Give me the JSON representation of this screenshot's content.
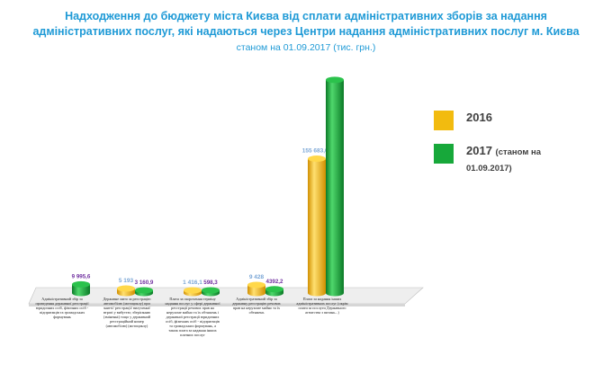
{
  "title": [
    "Надходження до бюджету міста Києва від сплати адміністративних зборів за надання",
    "адміністративних послуг, які надаються через Центри надання адміністративних послуг  м. Києва"
  ],
  "subtitle": "станом на 01.09.2017 (тис. грн.)",
  "colors": {
    "title": "#1f9ad6",
    "series_2016": "#f2bb0f",
    "series_2017": "#17a83a",
    "label_2016": "#7aa6d6",
    "label_2017": "#7030a0"
  },
  "legend": [
    {
      "label": "2016",
      "note": "",
      "color": "#f2bb0f"
    },
    {
      "label": "2017",
      "note": "(станом на",
      "note2": "01.09.2017)",
      "color": "#17a83a"
    }
  ],
  "chart_data": {
    "type": "bar",
    "style": "3d-cylinder",
    "categories": [
      "Адміністративний збір за проведення державної реєстрації юридичних осіб, фізичних осіб - підприємців та громадських формувань",
      "Державне мито за реєстрацію автомобілю (мотоциклу) при знятті/ реєстрації/ вилученні/ втраті у вибуттю; зберіганню (зміненні) тощо у державний реєстраційний номер (автомобілю) (мотоциклу)",
      "Плата за скорочення терміну надання послуг у сфері державної реєстрації речових прав на нерухоме майно та їх обтяжень і державної реєстрації юридичних осіб, фізичних осіб - підприємців та громадських формувань, а також плата за надання інших платних послуг",
      "Адміністративний збір за державну реєстрацію речових прав на нерухоме майно та їх обтяжень",
      "Плата за надання інших адміністративних послуг (окрім плати за послуги Державного агентства з питань...)"
    ],
    "series": [
      {
        "name": "2016",
        "values": [
          0,
          5193,
          1416.1,
          9428,
          155683.04
        ],
        "labels": [
          "",
          "5 193",
          "1 416,1",
          "9 428",
          "155 683,04"
        ]
      },
      {
        "name": "2017",
        "values": [
          9995.6,
          3160.9,
          598.3,
          4392.2,
          247000
        ],
        "labels": [
          "9 995,6",
          "3 160,9",
          "598,3",
          "4392,2",
          ""
        ]
      }
    ],
    "ylim": [
      0,
      250000
    ],
    "grid": false,
    "legend_position": "right"
  }
}
